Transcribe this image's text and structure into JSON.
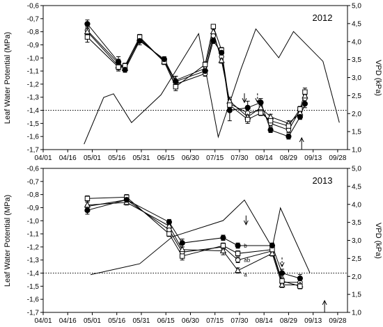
{
  "figure": {
    "y_label_left": "Leaf Water Potential (MPa)",
    "y_label_right": "VPD (kPa)",
    "x_tick_labels": [
      "04/01",
      "04/16",
      "05/01",
      "05/16",
      "05/31",
      "06/15",
      "06/30",
      "07/15",
      "07/30",
      "08/14",
      "08/29",
      "09/13",
      "09/28"
    ],
    "y_left_tick_labels": [
      "-0,6",
      "-0,7",
      "-0,8",
      "-0,9",
      "-1,0",
      "-1,1",
      "-1,2",
      "-1,3",
      "-1,4",
      "-1,5",
      "-1,6",
      "-1,7"
    ],
    "y_right_tick_labels": [
      "5,0",
      "4,5",
      "4,0",
      "3,5",
      "3,0",
      "2,5",
      "2,0",
      "1,5",
      "1,0"
    ]
  },
  "chart_data": [
    {
      "type": "line",
      "title": "2012",
      "xlabel": "",
      "ylabel": "Leaf Water Potential (MPa)",
      "y2label": "VPD (kPa)",
      "x_range_days": [
        91,
        277
      ],
      "ylim": [
        -1.7,
        -0.6
      ],
      "y2lim": [
        1.0,
        5.0
      ],
      "reference_line": -1.4,
      "grid": false,
      "series": [
        {
          "marker": "filled-circle",
          "points": [
            [
              118,
              -0.74
            ],
            [
              137,
              -1.03
            ],
            [
              141,
              -1.09
            ],
            [
              150,
              -0.87
            ],
            [
              165,
              -1.01
            ],
            [
              172,
              -1.18
            ],
            [
              190,
              -1.1
            ],
            [
              195,
              -0.87
            ],
            [
              200,
              -0.96
            ],
            [
              205,
              -1.4
            ],
            [
              216,
              -1.38
            ],
            [
              224,
              -1.34
            ],
            [
              230,
              -1.55
            ],
            [
              241,
              -1.6
            ],
            [
              248,
              -1.45
            ],
            [
              251,
              -1.35
            ]
          ],
          "errors": [
            0.03,
            0.04,
            0.02,
            0.03,
            0.02,
            0.04,
            0.03,
            0.02,
            0.03,
            0.08,
            0.05,
            0.03,
            0.02,
            0.02,
            0.02,
            0.03
          ]
        },
        {
          "marker": "open-square",
          "points": [
            [
              118,
              -0.84
            ],
            [
              137,
              -1.07
            ],
            [
              141,
              -1.06
            ],
            [
              150,
              -0.84
            ],
            [
              165,
              -1.03
            ],
            [
              172,
              -1.22
            ],
            [
              190,
              -1.05
            ],
            [
              195,
              -0.76
            ],
            [
              200,
              -0.94
            ],
            [
              205,
              -1.36
            ],
            [
              216,
              -1.47
            ],
            [
              224,
              -1.42
            ],
            [
              230,
              -1.48
            ],
            [
              241,
              -1.52
            ],
            [
              248,
              -1.39
            ],
            [
              251,
              -1.26
            ]
          ],
          "errors": [
            0.04,
            0.03,
            0.02,
            0.02,
            0.02,
            0.03,
            0.02,
            0.01,
            0.02,
            0.03,
            0.03,
            0.02,
            0.02,
            0.02,
            0.02,
            0.03
          ]
        },
        {
          "marker": "open-triangle",
          "points": [
            [
              118,
              -0.8
            ],
            [
              137,
              -1.06
            ],
            [
              141,
              -1.08
            ],
            [
              150,
              -0.85
            ],
            [
              165,
              -1.03
            ],
            [
              172,
              -1.17
            ],
            [
              190,
              -1.08
            ],
            [
              195,
              -0.8
            ],
            [
              200,
              -1.02
            ],
            [
              205,
              -1.33
            ],
            [
              216,
              -1.45
            ],
            [
              224,
              -1.38
            ],
            [
              230,
              -1.45
            ],
            [
              241,
              -1.5
            ],
            [
              248,
              -1.42
            ],
            [
              251,
              -1.29
            ]
          ],
          "errors": [
            0.03,
            0.03,
            0.02,
            0.02,
            0.02,
            0.03,
            0.02,
            0.02,
            0.02,
            0.03,
            0.03,
            0.02,
            0.02,
            0.02,
            0.02,
            0.03
          ]
        },
        {
          "marker": "open-circle",
          "points": [
            [
              118,
              -0.79
            ],
            [
              137,
              -1.04
            ],
            [
              141,
              -1.07
            ],
            [
              150,
              -0.86
            ],
            [
              165,
              -1.02
            ],
            [
              172,
              -1.2
            ],
            [
              190,
              -1.12
            ],
            [
              195,
              -0.83
            ],
            [
              200,
              -0.99
            ],
            [
              205,
              -1.35
            ],
            [
              216,
              -1.42
            ],
            [
              224,
              -1.4
            ],
            [
              230,
              -1.5
            ],
            [
              241,
              -1.55
            ],
            [
              248,
              -1.4
            ],
            [
              251,
              -1.31
            ]
          ],
          "errors": [
            0.03,
            0.03,
            0.02,
            0.02,
            0.02,
            0.03,
            0.02,
            0.02,
            0.02,
            0.03,
            0.03,
            0.02,
            0.02,
            0.02,
            0.02,
            0.03
          ]
        }
      ],
      "vpd_series": [
        [
          116,
          1.15
        ],
        [
          128,
          2.45
        ],
        [
          134,
          2.55
        ],
        [
          145,
          1.75
        ],
        [
          163,
          2.52
        ],
        [
          186,
          4.22
        ],
        [
          198,
          1.35
        ],
        [
          212,
          3.25
        ],
        [
          221,
          4.35
        ],
        [
          235,
          3.55
        ],
        [
          244,
          4.28
        ],
        [
          262,
          3.45
        ],
        [
          272,
          1.75
        ]
      ],
      "annotations": [
        {
          "type": "arrow-down",
          "x": 214,
          "from": -1.27,
          "to": -1.34
        },
        {
          "type": "arrow-down-dashed",
          "x": 222,
          "from": -1.27,
          "to": -1.34
        },
        {
          "type": "arrow-up",
          "x": 249,
          "from": -1.7,
          "to": -1.61
        }
      ]
    },
    {
      "type": "line",
      "title": "2013",
      "xlabel": "",
      "ylabel": "Leaf Water Potential (MPa)",
      "y2label": "VPD (kPa)",
      "x_range_days": [
        91,
        277
      ],
      "ylim": [
        -1.7,
        -0.6
      ],
      "y2lim": [
        1.0,
        5.0
      ],
      "reference_line": -1.4,
      "grid": false,
      "series": [
        {
          "marker": "filled-circle",
          "points": [
            [
              118,
              -0.92
            ],
            [
              142,
              -0.84
            ],
            [
              168,
              -1.01
            ],
            [
              176,
              -1.17
            ],
            [
              201,
              -1.13
            ],
            [
              210,
              -1.19
            ],
            [
              231,
              -1.19
            ],
            [
              237,
              -1.4
            ],
            [
              248,
              -1.44
            ]
          ],
          "errors": [
            0.03,
            0.02,
            0.02,
            0.03,
            0.02,
            0.02,
            0.02,
            0.03,
            0.03
          ]
        },
        {
          "marker": "open-square",
          "points": [
            [
              118,
              -0.83
            ],
            [
              142,
              -0.82
            ],
            [
              168,
              -1.1
            ],
            [
              176,
              -1.27
            ],
            [
              201,
              -1.19
            ],
            [
              210,
              -1.25
            ],
            [
              231,
              -1.22
            ],
            [
              237,
              -1.46
            ],
            [
              248,
              -1.5
            ]
          ],
          "errors": [
            0.02,
            0.02,
            0.02,
            0.03,
            0.02,
            0.02,
            0.02,
            0.02,
            0.02
          ]
        },
        {
          "marker": "open-triangle",
          "points": [
            [
              118,
              -0.88
            ],
            [
              142,
              -0.86
            ],
            [
              168,
              -1.04
            ],
            [
              176,
              -1.22
            ],
            [
              201,
              -1.23
            ],
            [
              210,
              -1.38
            ],
            [
              231,
              -1.25
            ],
            [
              237,
              -1.49
            ],
            [
              248,
              -1.49
            ]
          ],
          "errors": [
            0.03,
            0.02,
            0.02,
            0.02,
            0.03,
            0.02,
            0.02,
            0.02,
            0.02
          ]
        },
        {
          "marker": "open-circle",
          "points": [
            [
              118,
              -0.89
            ],
            [
              142,
              -0.84
            ],
            [
              168,
              -1.07
            ],
            [
              176,
              -1.24
            ],
            [
              201,
              -1.2
            ],
            [
              210,
              -1.3
            ],
            [
              231,
              -1.23
            ],
            [
              237,
              -1.47
            ],
            [
              248,
              -1.47
            ]
          ],
          "errors": [
            0.03,
            0.02,
            0.02,
            0.02,
            0.02,
            0.02,
            0.02,
            0.02,
            0.02
          ]
        }
      ],
      "vpd_series": [
        [
          120,
          2.05
        ],
        [
          150,
          2.35
        ],
        [
          170,
          3.1
        ],
        [
          201,
          3.55
        ],
        [
          214,
          4.12
        ],
        [
          231,
          2.8
        ],
        [
          236,
          3.9
        ],
        [
          254,
          2.1
        ]
      ],
      "letters": [
        {
          "label": "b",
          "x": 212,
          "y": -1.19
        },
        {
          "label": "ab",
          "x": 212,
          "y": -1.3
        },
        {
          "label": "a",
          "x": 212,
          "y": -1.41
        }
      ],
      "annotations": [
        {
          "type": "arrow-down",
          "x": 215,
          "from": -0.96,
          "to": -1.03
        },
        {
          "type": "arrow-down-dashed",
          "x": 237,
          "from": -1.28,
          "to": -1.35
        },
        {
          "type": "arrow-up",
          "x": 263,
          "from": -1.7,
          "to": -1.61
        }
      ]
    }
  ]
}
